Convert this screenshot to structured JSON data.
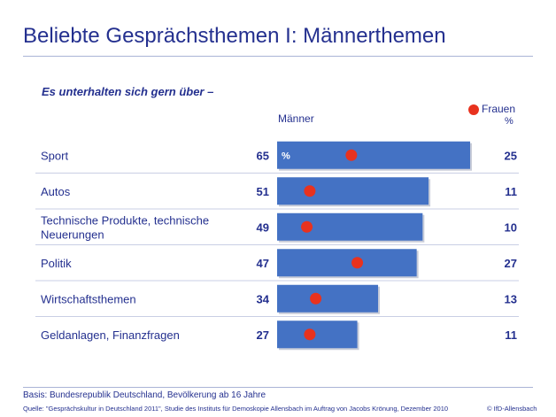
{
  "header": {
    "title": "Beliebte Gesprächsthemen I: Männerthemen",
    "subtitle": "Es unterhalten sich gern über –"
  },
  "legend": {
    "maenner_label": "Männer",
    "frauen_label": "Frauen",
    "frauen_pct": "%",
    "bar_pct_marker": "%"
  },
  "colors": {
    "bar": "#4472c4",
    "dot": "#e8321e",
    "text": "#24308f"
  },
  "chart_data": {
    "type": "bar",
    "orientation": "horizontal",
    "title": "Beliebte Gesprächsthemen I: Männerthemen",
    "categories": [
      "Sport",
      "Autos",
      "Technische Produkte, technische Neuerungen",
      "Politik",
      "Wirtschaftsthemen",
      "Geldanlagen, Finanzfragen"
    ],
    "category_lines": [
      [
        "Sport"
      ],
      [
        "Autos"
      ],
      [
        "Technische Produkte, technische",
        "Neuerungen"
      ],
      [
        "Politik"
      ],
      [
        "Wirtschaftsthemen"
      ],
      [
        "Geldanlagen, Finanzfragen"
      ]
    ],
    "series": [
      {
        "name": "Männer",
        "mark": "bar",
        "values": [
          65,
          51,
          49,
          47,
          34,
          27
        ]
      },
      {
        "name": "Frauen",
        "mark": "dot",
        "values": [
          25,
          11,
          10,
          27,
          13,
          11
        ]
      }
    ],
    "unit": "%",
    "xlim": [
      0,
      65
    ]
  },
  "footer": {
    "basis": "Basis: Bundesrepublik Deutschland, Bevölkerung ab 16 Jahre",
    "quelle": "Quelle: \"Gesprächskultur in Deutschland 2011\", Studie des Instituts für Demoskopie Allensbach im Auftrag von Jacobs Krönung, Dezember 2010",
    "copyright": "© IfD-Allensbach"
  }
}
